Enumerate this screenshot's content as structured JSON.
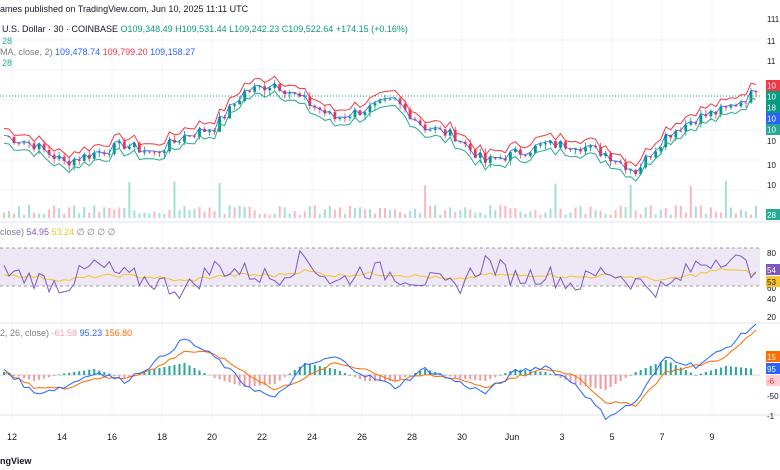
{
  "header": {
    "publisher_line": "ames published on TradingView.com, Jun 10, 2025 11:11 UTC",
    "symbol": "U.S. Dollar · 30 · COINBASE",
    "open": "O109,348.49",
    "high": "H109,531.44",
    "low": "L109,242.23",
    "close": "C109,522.64",
    "change": "+174.15 (+0.16%)",
    "vol_label": "28",
    "ma_label": "MA, close, 2)",
    "ma_v1": "109,478.74",
    "ma_v2": "109,799.20",
    "ma_v3": "109,158.27",
    "vol_ma_label": "28"
  },
  "rsi_header": {
    "label": "close)",
    "v1": "54.95",
    "v2": "53.24",
    "v3": "∅ ∅ ∅ ∅"
  },
  "macd_header": {
    "label": "2, 26, close)",
    "v1": "-61.58",
    "v2": "95.23",
    "v3": "156.80"
  },
  "footer": {
    "brand": "ngView"
  },
  "colors": {
    "up": "#089981",
    "down": "#f23645",
    "ma_red": "#f23645",
    "ma_blue": "#2962ff",
    "ma_teal": "#22ab94",
    "rsi": "#7e57c2",
    "rsi_ma": "#f7c325",
    "macd": "#2962ff",
    "signal": "#ff6d00",
    "rsi_band": "#ede7f6"
  },
  "chart_data": [
    {
      "type": "line",
      "title": "U.S. Dollar · 30 · COINBASE",
      "x_ticks": [
        "12",
        "14",
        "16",
        "18",
        "20",
        "22",
        "24",
        "26",
        "28",
        "30",
        "Jun",
        "3",
        "5",
        "7",
        "9"
      ],
      "y_axis_labels": [
        "111",
        "11",
        "11",
        "10",
        "10",
        "10",
        "10",
        "10"
      ],
      "last_labels": [
        "10",
        "10",
        "18",
        "10",
        "10"
      ],
      "volume_label": "28",
      "series": [
        {
          "name": "price",
          "x": [
            0,
            4,
            8,
            12,
            16,
            20,
            24,
            28,
            32,
            36,
            40,
            44,
            48,
            52,
            56,
            60,
            64,
            68,
            72,
            76,
            80,
            84,
            88,
            92,
            96,
            100
          ],
          "values": [
            104,
            103,
            101,
            102,
            103,
            102,
            104,
            105,
            109,
            110,
            108,
            106,
            107,
            108,
            105,
            104,
            101,
            102,
            103,
            103,
            102,
            100,
            104,
            106,
            107,
            109
          ]
        }
      ]
    },
    {
      "type": "line",
      "title": "RSI",
      "y_axis_labels": [
        "80",
        "60",
        "54",
        "53",
        "40",
        "20"
      ],
      "series": [
        {
          "name": "RSI",
          "values": [
            55,
            48,
            40,
            62,
            50,
            45,
            35,
            60,
            55,
            48,
            70,
            42,
            58,
            52,
            46,
            38,
            66,
            49,
            53,
            41,
            57,
            44,
            36,
            62,
            72,
            55
          ]
        },
        {
          "name": "RSI-based MA",
          "values": [
            52,
            50,
            46,
            50,
            51,
            49,
            45,
            50,
            52,
            51,
            56,
            51,
            53,
            52,
            50,
            46,
            52,
            51,
            52,
            49,
            51,
            49,
            46,
            52,
            58,
            53
          ]
        }
      ]
    },
    {
      "type": "line",
      "title": "MACD",
      "y_axis_labels": [
        "15",
        "95",
        "-6",
        "-50",
        "-1"
      ],
      "series": [
        {
          "name": "MACD",
          "values": [
            20,
            -60,
            -40,
            10,
            -20,
            40,
            120,
            60,
            -30,
            -80,
            30,
            60,
            0,
            -40,
            20,
            -20,
            -60,
            10,
            30,
            -30,
            -140,
            -90,
            60,
            30,
            90,
            170
          ]
        },
        {
          "name": "Signal",
          "values": [
            10,
            -40,
            -45,
            -10,
            -10,
            20,
            80,
            70,
            10,
            -50,
            -10,
            40,
            20,
            -20,
            0,
            -10,
            -40,
            -10,
            20,
            0,
            -90,
            -100,
            10,
            30,
            60,
            150
          ]
        }
      ]
    }
  ]
}
